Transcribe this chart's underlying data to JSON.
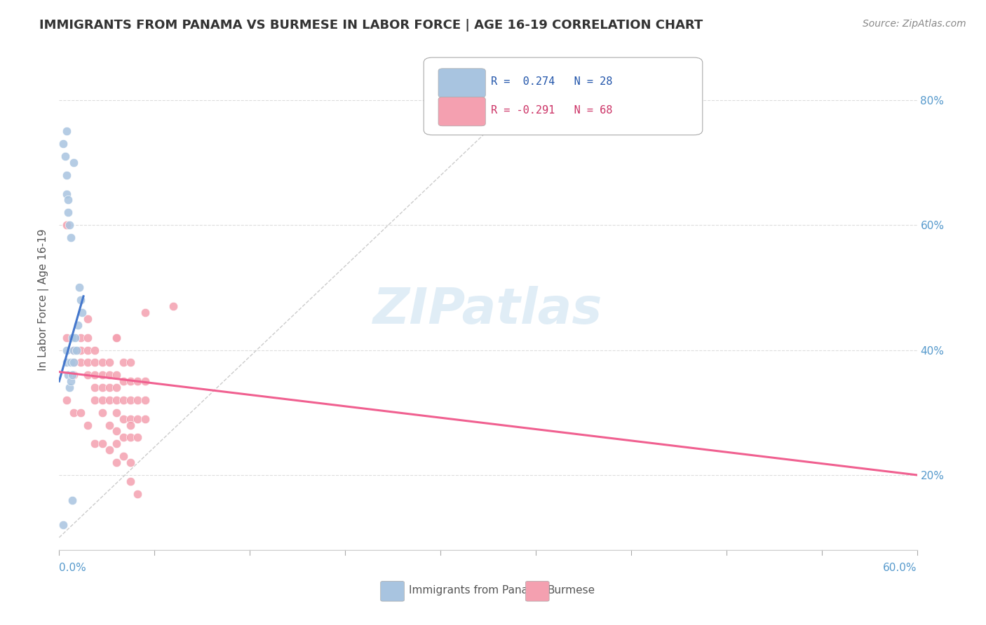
{
  "title": "IMMIGRANTS FROM PANAMA VS BURMESE IN LABOR FORCE | AGE 16-19 CORRELATION CHART",
  "source": "Source: ZipAtlas.com",
  "ylabel": "In Labor Force | Age 16-19",
  "right_yticks": [
    20.0,
    40.0,
    60.0,
    80.0
  ],
  "xlim": [
    0.0,
    0.6
  ],
  "ylim": [
    0.08,
    0.88
  ],
  "panama_color": "#a8c4e0",
  "burmese_color": "#f4a0b0",
  "panama_trend_color": "#4477cc",
  "burmese_trend_color": "#f06090",
  "panama_points": [
    [
      0.005,
      0.38
    ],
    [
      0.005,
      0.4
    ],
    [
      0.006,
      0.36
    ],
    [
      0.007,
      0.34
    ],
    [
      0.008,
      0.35
    ],
    [
      0.008,
      0.38
    ],
    [
      0.009,
      0.42
    ],
    [
      0.009,
      0.36
    ],
    [
      0.01,
      0.38
    ],
    [
      0.01,
      0.4
    ],
    [
      0.011,
      0.42
    ],
    [
      0.012,
      0.4
    ],
    [
      0.013,
      0.44
    ],
    [
      0.014,
      0.5
    ],
    [
      0.015,
      0.48
    ],
    [
      0.016,
      0.46
    ],
    [
      0.005,
      0.68
    ],
    [
      0.005,
      0.65
    ],
    [
      0.006,
      0.64
    ],
    [
      0.006,
      0.62
    ],
    [
      0.007,
      0.6
    ],
    [
      0.008,
      0.58
    ],
    [
      0.003,
      0.73
    ],
    [
      0.004,
      0.71
    ],
    [
      0.005,
      0.75
    ],
    [
      0.01,
      0.7
    ],
    [
      0.009,
      0.16
    ],
    [
      0.003,
      0.12
    ]
  ],
  "burmese_points": [
    [
      0.005,
      0.6
    ],
    [
      0.04,
      0.42
    ],
    [
      0.005,
      0.42
    ],
    [
      0.01,
      0.4
    ],
    [
      0.01,
      0.38
    ],
    [
      0.01,
      0.36
    ],
    [
      0.015,
      0.42
    ],
    [
      0.015,
      0.4
    ],
    [
      0.015,
      0.38
    ],
    [
      0.02,
      0.42
    ],
    [
      0.02,
      0.4
    ],
    [
      0.02,
      0.38
    ],
    [
      0.02,
      0.36
    ],
    [
      0.025,
      0.4
    ],
    [
      0.025,
      0.38
    ],
    [
      0.025,
      0.36
    ],
    [
      0.025,
      0.34
    ],
    [
      0.025,
      0.32
    ],
    [
      0.025,
      0.25
    ],
    [
      0.03,
      0.38
    ],
    [
      0.03,
      0.36
    ],
    [
      0.03,
      0.34
    ],
    [
      0.03,
      0.32
    ],
    [
      0.03,
      0.3
    ],
    [
      0.03,
      0.25
    ],
    [
      0.035,
      0.38
    ],
    [
      0.035,
      0.36
    ],
    [
      0.035,
      0.34
    ],
    [
      0.035,
      0.32
    ],
    [
      0.035,
      0.28
    ],
    [
      0.035,
      0.24
    ],
    [
      0.04,
      0.36
    ],
    [
      0.04,
      0.34
    ],
    [
      0.04,
      0.32
    ],
    [
      0.04,
      0.3
    ],
    [
      0.04,
      0.27
    ],
    [
      0.04,
      0.25
    ],
    [
      0.04,
      0.22
    ],
    [
      0.045,
      0.38
    ],
    [
      0.045,
      0.35
    ],
    [
      0.045,
      0.32
    ],
    [
      0.045,
      0.29
    ],
    [
      0.045,
      0.26
    ],
    [
      0.045,
      0.23
    ],
    [
      0.05,
      0.38
    ],
    [
      0.05,
      0.35
    ],
    [
      0.05,
      0.32
    ],
    [
      0.05,
      0.29
    ],
    [
      0.05,
      0.26
    ],
    [
      0.05,
      0.22
    ],
    [
      0.05,
      0.19
    ],
    [
      0.055,
      0.35
    ],
    [
      0.055,
      0.32
    ],
    [
      0.055,
      0.29
    ],
    [
      0.055,
      0.26
    ],
    [
      0.055,
      0.17
    ],
    [
      0.06,
      0.35
    ],
    [
      0.06,
      0.32
    ],
    [
      0.06,
      0.29
    ],
    [
      0.04,
      0.42
    ],
    [
      0.005,
      0.32
    ],
    [
      0.01,
      0.3
    ],
    [
      0.015,
      0.3
    ],
    [
      0.02,
      0.28
    ],
    [
      0.02,
      0.45
    ],
    [
      0.05,
      0.28
    ],
    [
      0.06,
      0.46
    ],
    [
      0.08,
      0.47
    ]
  ],
  "watermark": "ZIPatlas",
  "bg_color": "#ffffff",
  "grid_color": "#dddddd"
}
